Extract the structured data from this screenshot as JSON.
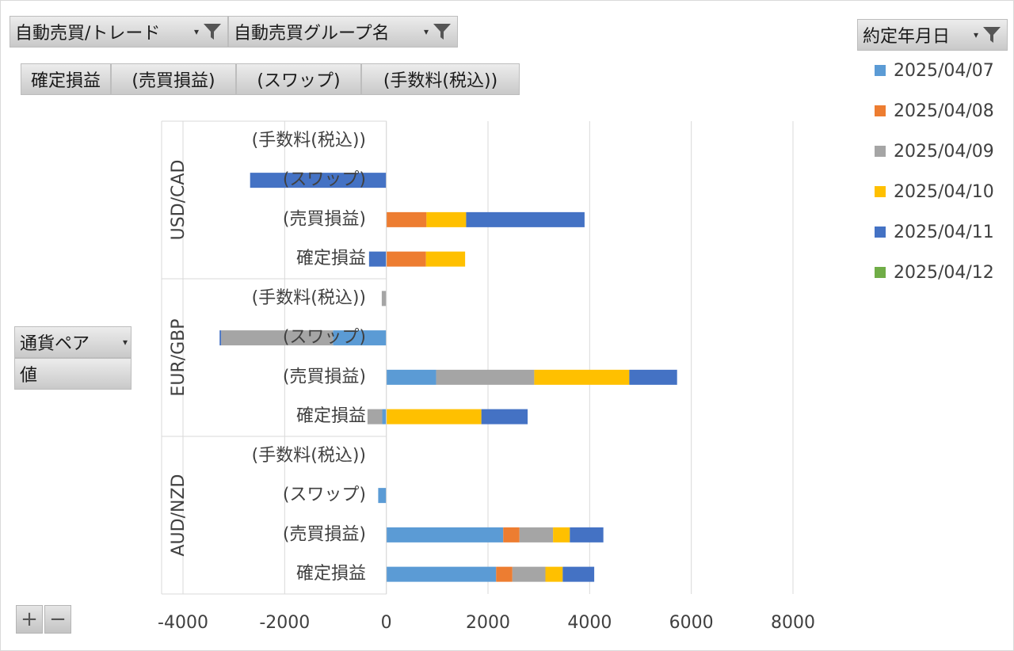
{
  "filters": {
    "trade": "自動売買/トレード",
    "group": "自動売買グループ名",
    "date_header": "約定年月日"
  },
  "value_buttons": [
    "確定損益",
    "(売買損益)",
    "(スワップ)",
    "(手数料(税込))"
  ],
  "row_fields": {
    "pair": "通貨ペア",
    "value": "値"
  },
  "zoom": {
    "plus": "+",
    "minus": "−"
  },
  "colors": {
    "2025/04/07": "#5b9bd5",
    "2025/04/08": "#ed7d31",
    "2025/04/09": "#a5a5a5",
    "2025/04/10": "#ffc000",
    "2025/04/11": "#4472c4",
    "2025/04/12": "#70ad47"
  },
  "chart_data": {
    "type": "bar",
    "orientation": "horizontal",
    "stacked": true,
    "title": "",
    "xlabel": "",
    "ylabel": "",
    "xlim": [
      -4000,
      8000
    ],
    "x_ticks": [
      -4000,
      -2000,
      0,
      2000,
      4000,
      6000,
      8000
    ],
    "grid": true,
    "legend_position": "right",
    "groups": [
      "USD/CAD",
      "EUR/GBP",
      "AUD/NZD"
    ],
    "categories": [
      "(手数料(税込))",
      "(スワップ)",
      "(売買損益)",
      "確定損益"
    ],
    "series": [
      {
        "name": "2025/04/07",
        "values": {
          "USD/CAD": [
            0,
            0,
            0,
            0
          ],
          "EUR/GBP": [
            0,
            -1050,
            980,
            -80
          ],
          "AUD/NZD": [
            0,
            -160,
            2300,
            2160
          ]
        }
      },
      {
        "name": "2025/04/08",
        "values": {
          "USD/CAD": [
            0,
            0,
            790,
            780
          ],
          "EUR/GBP": [
            0,
            0,
            0,
            0
          ],
          "AUD/NZD": [
            0,
            0,
            320,
            320
          ]
        }
      },
      {
        "name": "2025/04/09",
        "values": {
          "USD/CAD": [
            0,
            0,
            0,
            0
          ],
          "EUR/GBP": [
            -90,
            -2200,
            1930,
            -290
          ],
          "AUD/NZD": [
            0,
            0,
            660,
            650
          ]
        }
      },
      {
        "name": "2025/04/10",
        "values": {
          "USD/CAD": [
            0,
            0,
            780,
            770
          ],
          "EUR/GBP": [
            0,
            0,
            1870,
            1870
          ],
          "AUD/NZD": [
            0,
            0,
            330,
            340
          ]
        }
      },
      {
        "name": "2025/04/11",
        "values": {
          "USD/CAD": [
            0,
            -2680,
            2330,
            -340
          ],
          "EUR/GBP": [
            0,
            -30,
            940,
            910
          ],
          "AUD/NZD": [
            0,
            0,
            660,
            620
          ]
        }
      },
      {
        "name": "2025/04/12",
        "values": {
          "USD/CAD": [
            0,
            0,
            0,
            0
          ],
          "EUR/GBP": [
            0,
            0,
            0,
            0
          ],
          "AUD/NZD": [
            0,
            0,
            0,
            0
          ]
        }
      }
    ]
  }
}
